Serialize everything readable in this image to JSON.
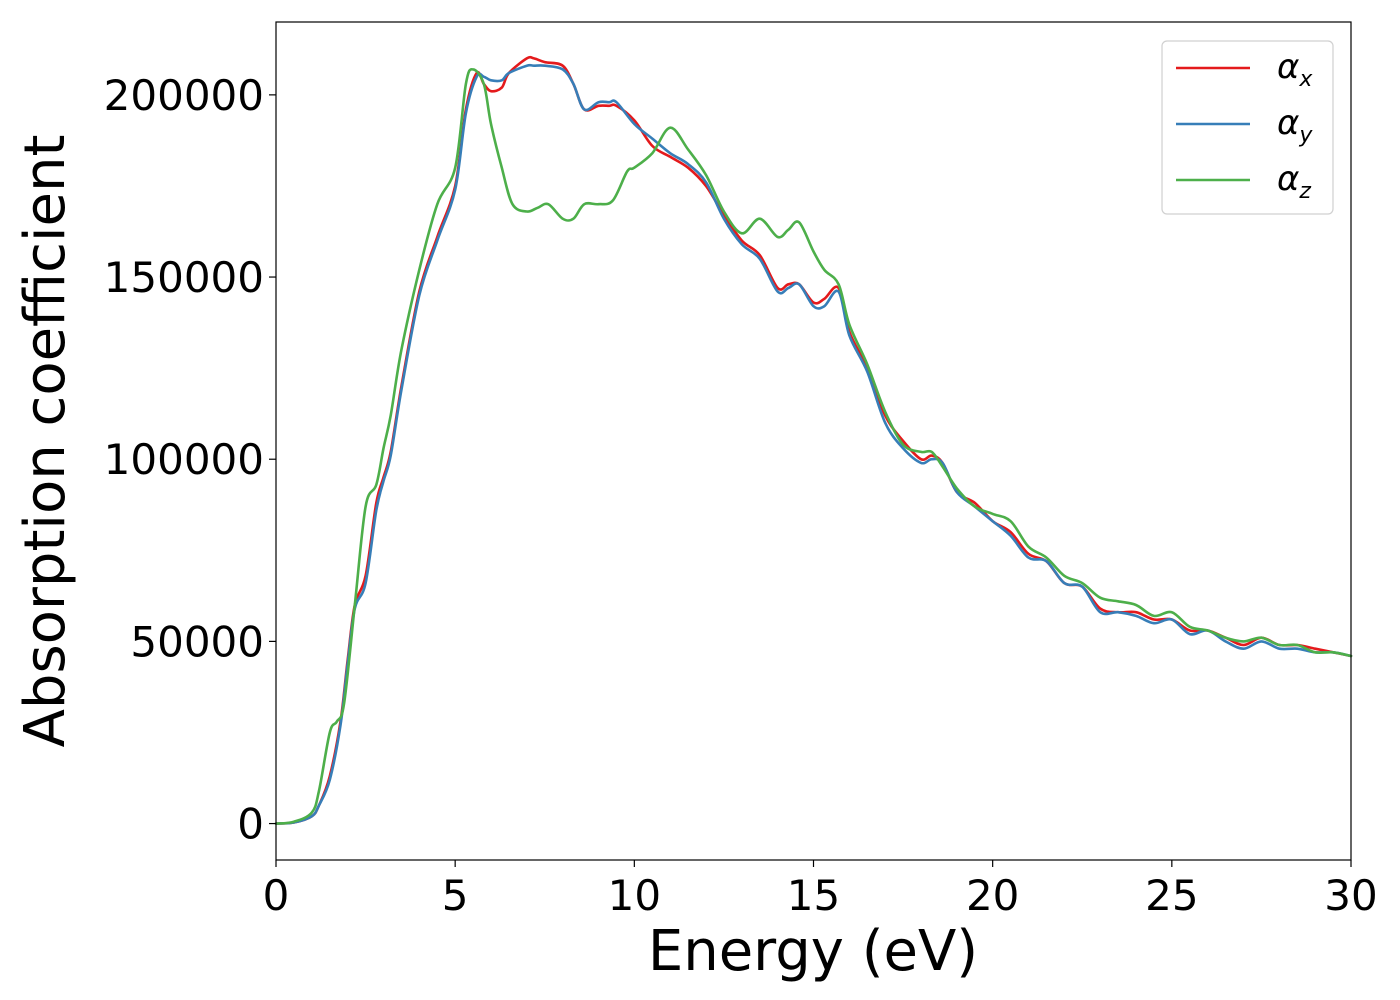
{
  "chart_data": {
    "type": "line",
    "xlabel": "Energy (eV)",
    "ylabel": "Absorption coefficient",
    "xlim": [
      0,
      30
    ],
    "ylim": [
      -10000,
      220000
    ],
    "x_ticks": [
      0,
      5,
      10,
      15,
      20,
      25,
      30
    ],
    "y_ticks": [
      0,
      50000,
      100000,
      150000,
      200000
    ],
    "grid": false,
    "legend_position": "top-right",
    "series": [
      {
        "name": "α",
        "subscript": "x",
        "color": "#e41a1c",
        "x": [
          0,
          0.5,
          1,
          1.2,
          1.5,
          1.8,
          2,
          2.2,
          2.5,
          2.8,
          3,
          3.2,
          3.5,
          4,
          4.5,
          5,
          5.3,
          5.6,
          5.8,
          6,
          6.3,
          6.5,
          7,
          7.2,
          7.5,
          8,
          8.3,
          8.6,
          9,
          9.3,
          9.5,
          10,
          10.5,
          11,
          11.5,
          12,
          12.5,
          13,
          13.5,
          14,
          14.3,
          14.6,
          15,
          15.3,
          15.7,
          16,
          16.5,
          17,
          17.5,
          18,
          18.3,
          18.6,
          19,
          19.5,
          20,
          20.5,
          21,
          21.5,
          22,
          22.5,
          23,
          23.5,
          24,
          24.5,
          25,
          25.5,
          26,
          26.5,
          27,
          27.5,
          28,
          28.5,
          29,
          29.5,
          30
        ],
        "y": [
          0,
          300,
          2000,
          5000,
          13000,
          28000,
          45000,
          60000,
          68000,
          88000,
          95000,
          102000,
          120000,
          146000,
          161000,
          175000,
          196000,
          206000,
          203000,
          201000,
          202000,
          206000,
          210000,
          210000,
          209000,
          208000,
          203000,
          196000,
          197000,
          197000,
          197000,
          193000,
          186000,
          183000,
          180000,
          175000,
          167000,
          160000,
          156000,
          147000,
          148000,
          148000,
          143000,
          144000,
          147000,
          135000,
          125000,
          112000,
          105000,
          100000,
          101000,
          99000,
          91000,
          88000,
          83000,
          80000,
          74000,
          72000,
          66000,
          65000,
          59000,
          58000,
          58000,
          56000,
          56000,
          53000,
          53000,
          51000,
          49000,
          51000,
          49000,
          49000,
          48000,
          47000,
          46000
        ]
      },
      {
        "name": "α",
        "subscript": "y",
        "color": "#377eb8",
        "x": [
          0,
          0.5,
          1,
          1.2,
          1.5,
          1.8,
          2,
          2.2,
          2.5,
          2.8,
          3,
          3.2,
          3.5,
          4,
          4.5,
          5,
          5.3,
          5.6,
          5.8,
          6,
          6.3,
          6.5,
          7,
          7.2,
          7.5,
          8,
          8.3,
          8.6,
          9,
          9.3,
          9.5,
          10,
          10.5,
          11,
          11.5,
          12,
          12.5,
          13,
          13.5,
          14,
          14.3,
          14.6,
          15,
          15.3,
          15.7,
          16,
          16.5,
          17,
          17.5,
          18,
          18.3,
          18.6,
          19,
          19.5,
          20,
          20.5,
          21,
          21.5,
          22,
          22.5,
          23,
          23.5,
          24,
          24.5,
          25,
          25.5,
          26,
          26.5,
          27,
          27.5,
          28,
          28.5,
          29,
          29.5,
          30
        ],
        "y": [
          0,
          300,
          2000,
          5000,
          12000,
          27000,
          44000,
          59000,
          66000,
          86000,
          94000,
          101000,
          119000,
          145000,
          160000,
          174000,
          195000,
          205000,
          205000,
          204000,
          204000,
          206000,
          208000,
          208000,
          208000,
          207000,
          203000,
          196000,
          198000,
          198000,
          198000,
          192000,
          188000,
          184000,
          181000,
          176000,
          166000,
          159000,
          155000,
          146000,
          147000,
          148000,
          142000,
          142000,
          146000,
          134000,
          124000,
          110000,
          103000,
          99000,
          100000,
          99000,
          91000,
          87000,
          83000,
          79000,
          73000,
          72000,
          66000,
          65000,
          58000,
          58000,
          57000,
          55000,
          56000,
          52000,
          53000,
          50000,
          48000,
          50000,
          48000,
          48000,
          47000,
          47000,
          46000
        ]
      },
      {
        "name": "α",
        "subscript": "z",
        "color": "#4daf4a",
        "x": [
          0,
          0.5,
          1,
          1.2,
          1.5,
          1.7,
          1.9,
          2.2,
          2.5,
          2.8,
          3,
          3.2,
          3.5,
          4,
          4.5,
          5,
          5.3,
          5.5,
          5.8,
          6,
          6.3,
          6.6,
          7,
          7.3,
          7.6,
          8,
          8.3,
          8.6,
          9,
          9.4,
          9.8,
          10,
          10.5,
          11,
          11.5,
          12,
          12.5,
          13,
          13.5,
          14,
          14.3,
          14.6,
          15,
          15.3,
          15.7,
          16,
          16.5,
          17,
          17.5,
          18,
          18.3,
          18.6,
          19,
          19.5,
          20,
          20.5,
          21,
          21.5,
          22,
          22.5,
          23,
          23.5,
          24,
          24.5,
          25,
          25.5,
          26,
          26.5,
          27,
          27.5,
          28,
          28.5,
          29,
          29.5,
          30
        ],
        "y": [
          0,
          500,
          3000,
          9000,
          25000,
          28000,
          33000,
          60000,
          87000,
          93000,
          103000,
          112000,
          130000,
          152000,
          170000,
          180000,
          203000,
          207000,
          203000,
          192000,
          180000,
          170000,
          168000,
          169000,
          170000,
          166000,
          166000,
          170000,
          170000,
          171000,
          179000,
          180000,
          184000,
          191000,
          185000,
          178000,
          168000,
          162000,
          166000,
          161000,
          163000,
          165000,
          157000,
          152000,
          148000,
          137000,
          126000,
          113000,
          104000,
          102000,
          102000,
          98000,
          92000,
          87000,
          85000,
          83000,
          76000,
          73000,
          68000,
          66000,
          62000,
          61000,
          60000,
          57000,
          58000,
          54000,
          53000,
          51000,
          50000,
          51000,
          49000,
          49000,
          47000,
          47000,
          46000
        ]
      }
    ]
  }
}
